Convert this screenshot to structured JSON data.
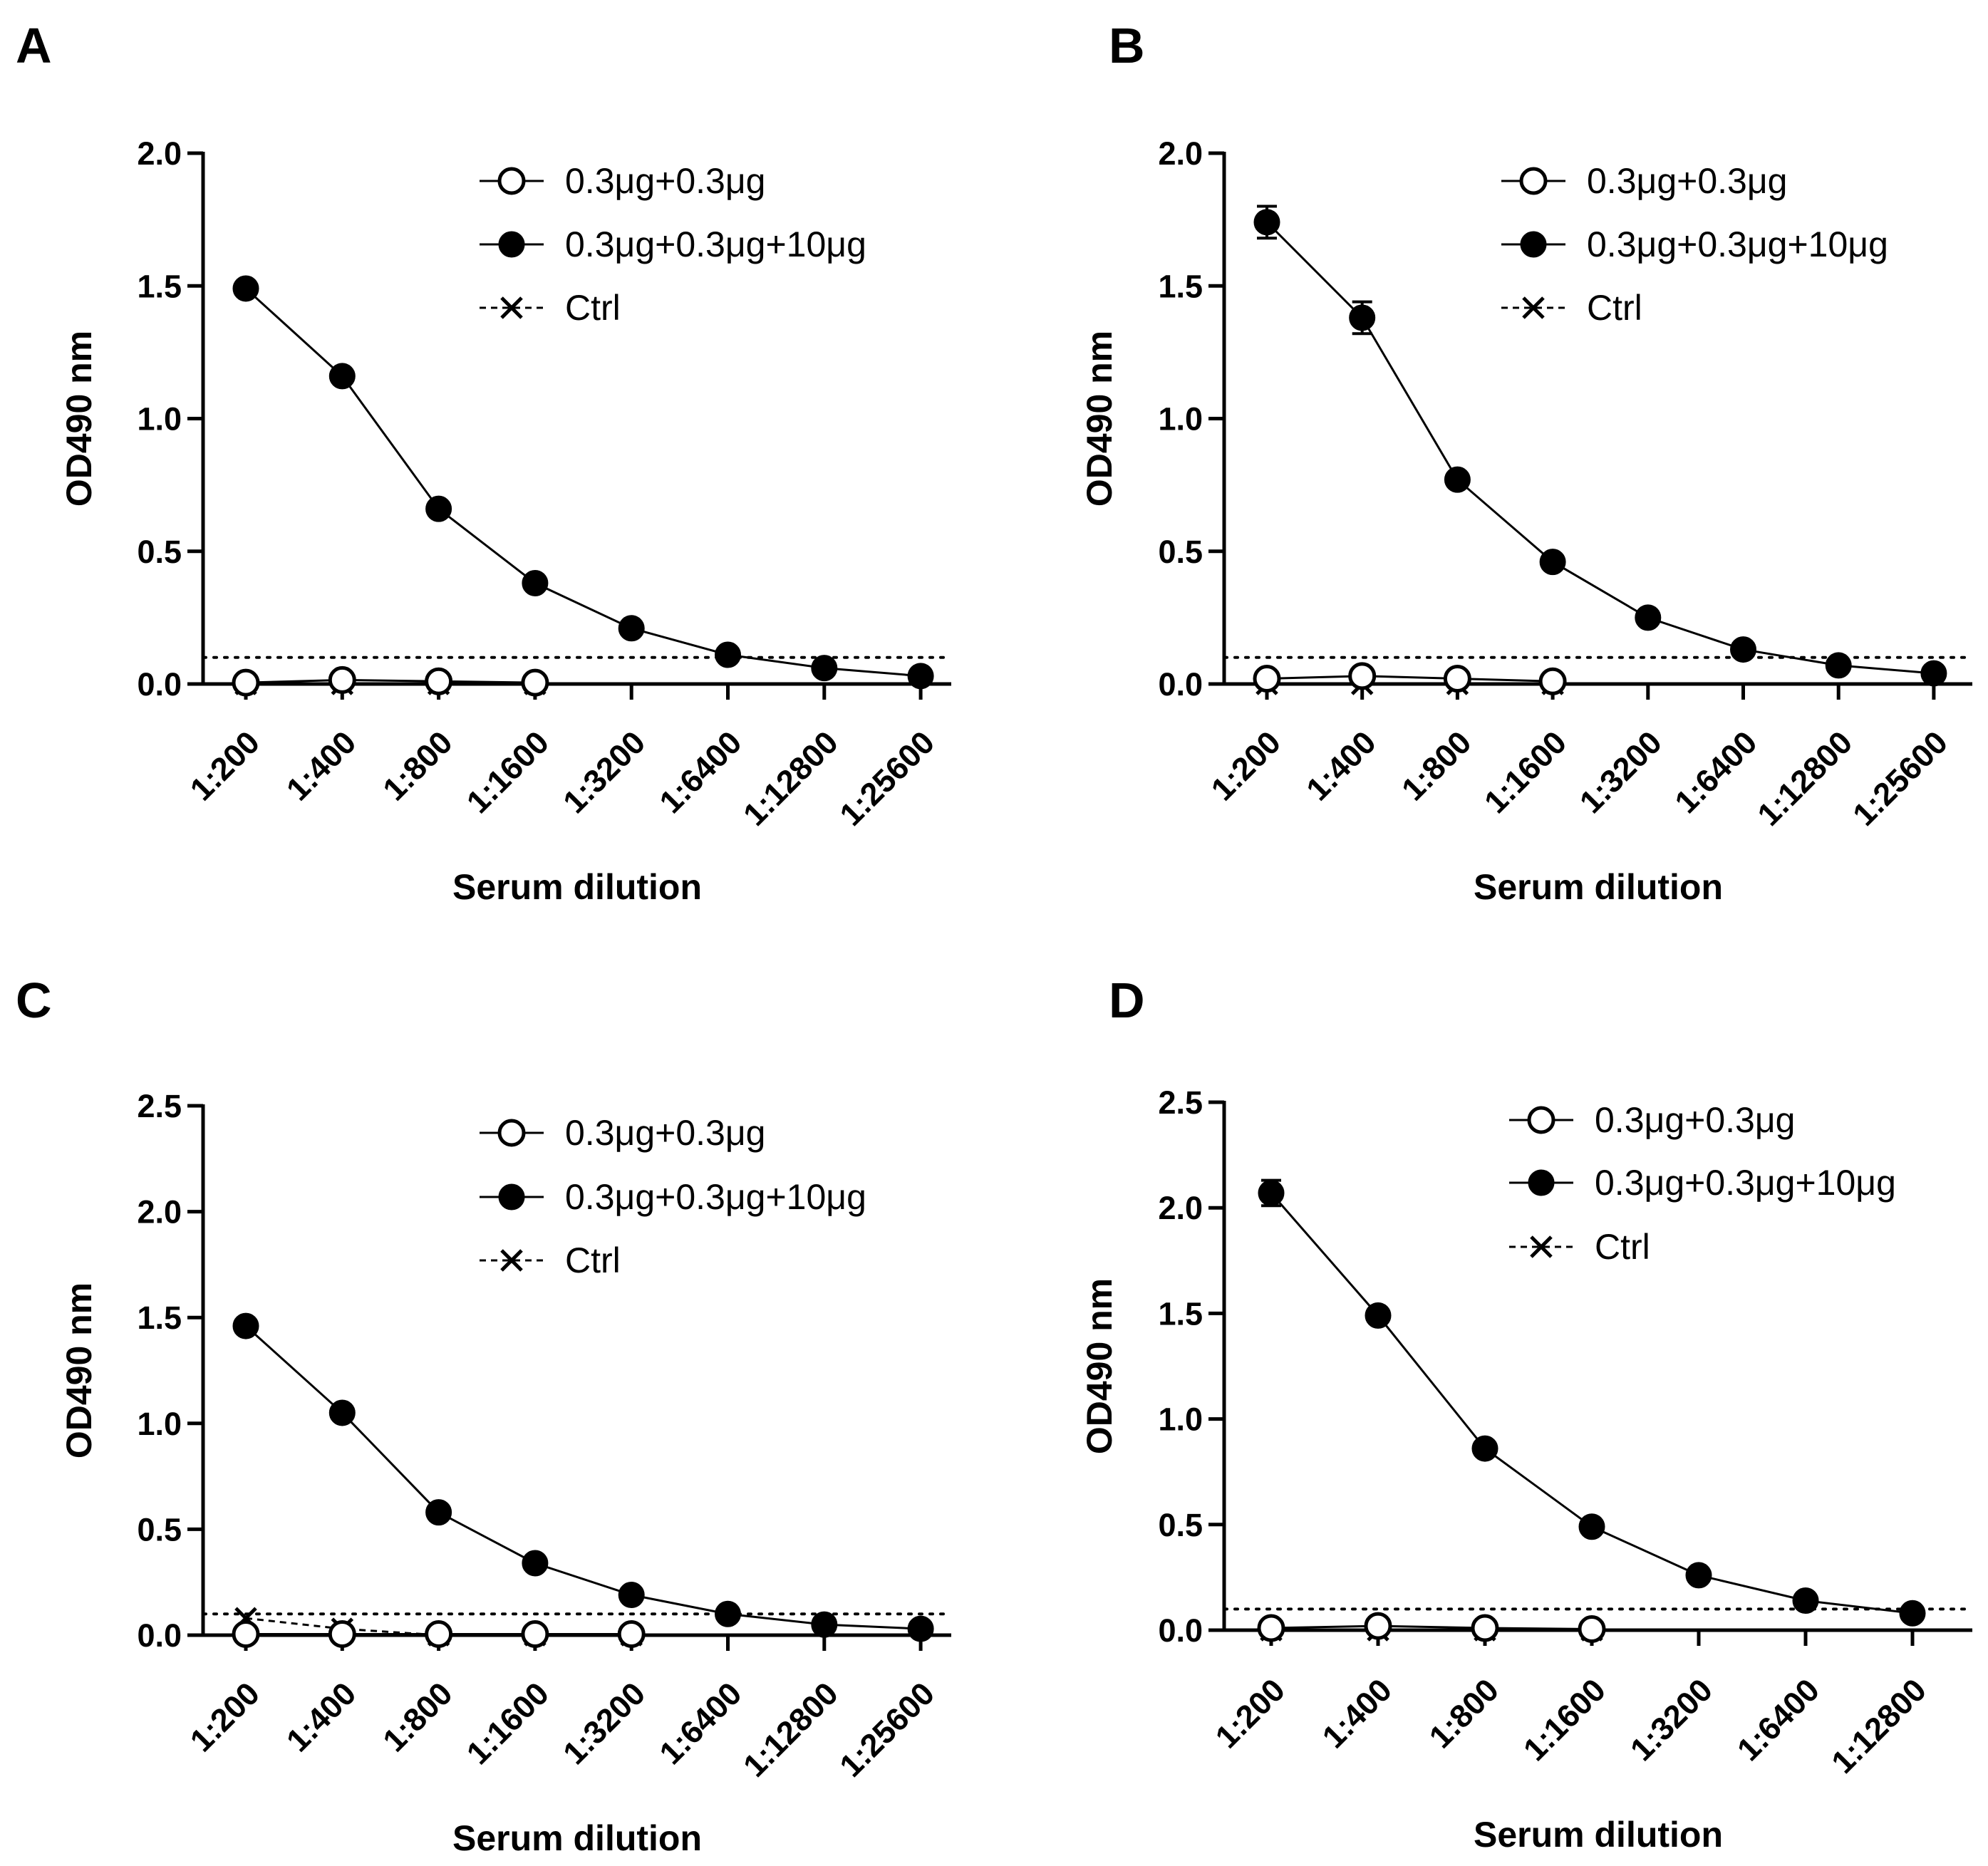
{
  "figure": {
    "background": "#ffffff",
    "ink": "#000000"
  },
  "legend": {
    "entries": [
      {
        "name": "0.3μg+0.3μg",
        "marker": "open-circle",
        "line": "solid"
      },
      {
        "name": "0.3μg+0.3μg+10μg",
        "marker": "filled-circle",
        "line": "solid"
      },
      {
        "name": "Ctrl",
        "marker": "cross",
        "line": "dashed"
      }
    ]
  },
  "chart_data": [
    {
      "panel": "A",
      "type": "line",
      "ylabel": "OD490 nm",
      "xlabel": "Serum  dilution",
      "ylim": [
        0,
        2.0
      ],
      "yticks": [
        0.0,
        0.5,
        1.0,
        1.5,
        2.0
      ],
      "ytick_labels": [
        "0.0",
        "0.5",
        "1.0",
        "1.5",
        "2.0"
      ],
      "categories": [
        "1:200",
        "1:400",
        "1:800",
        "1:1600",
        "1:3200",
        "1:6400",
        "1:12800",
        "1:25600"
      ],
      "cutoff": 0.1,
      "legend_position": "top-right",
      "series": [
        {
          "name": "0.3μg+0.3μg",
          "values": [
            0.005,
            0.015,
            0.01,
            0.005,
            null,
            null,
            null,
            null
          ]
        },
        {
          "name": "0.3μg+0.3μg+10μg",
          "values": [
            1.49,
            1.16,
            0.66,
            0.38,
            0.21,
            0.11,
            0.06,
            0.03
          ],
          "errors": [
            0,
            0,
            0,
            0,
            0,
            0,
            0,
            0
          ]
        },
        {
          "name": "Ctrl",
          "values": [
            0.0,
            0.0,
            0.0,
            0.0,
            null,
            null,
            null,
            null
          ]
        }
      ]
    },
    {
      "panel": "B",
      "type": "line",
      "ylabel": "OD490 nm",
      "xlabel": "Serum  dilution",
      "ylim": [
        0,
        2.0
      ],
      "yticks": [
        0.0,
        0.5,
        1.0,
        1.5,
        2.0
      ],
      "ytick_labels": [
        "0.0",
        "0.5",
        "1.0",
        "1.5",
        "2.0"
      ],
      "categories": [
        "1:200",
        "1:400",
        "1:800",
        "1:1600",
        "1:3200",
        "1:6400",
        "1:12800",
        "1:25600"
      ],
      "cutoff": 0.1,
      "legend_position": "top-right",
      "series": [
        {
          "name": "0.3μg+0.3μg",
          "values": [
            0.02,
            0.03,
            0.02,
            0.01,
            null,
            null,
            null,
            null
          ]
        },
        {
          "name": "0.3μg+0.3μg+10μg",
          "values": [
            1.74,
            1.38,
            0.77,
            0.46,
            0.25,
            0.13,
            0.07,
            0.04
          ],
          "errors": [
            0.06,
            0.06,
            0,
            0,
            0,
            0,
            0,
            0
          ]
        },
        {
          "name": "Ctrl",
          "values": [
            0.0,
            0.0,
            0.0,
            0.0,
            null,
            null,
            null,
            null
          ]
        }
      ]
    },
    {
      "panel": "C",
      "type": "line",
      "ylabel": "OD490 nm",
      "xlabel": "Serum dilution",
      "ylim": [
        0,
        2.5
      ],
      "yticks": [
        0.0,
        0.5,
        1.0,
        1.5,
        2.0,
        2.5
      ],
      "ytick_labels": [
        "0.0",
        "0.5",
        "1.0",
        "1.5",
        "2.0",
        "2.5"
      ],
      "categories": [
        "1:200",
        "1:400",
        "1:800",
        "1:1600",
        "1:3200",
        "1:6400",
        "1:12800",
        "1:25600"
      ],
      "cutoff": 0.1,
      "legend_position": "top-right",
      "series": [
        {
          "name": "0.3μg+0.3μg",
          "values": [
            0.005,
            0.005,
            0.005,
            0.005,
            0.005,
            null,
            null,
            null
          ]
        },
        {
          "name": "0.3μg+0.3μg+10μg",
          "values": [
            1.46,
            1.05,
            0.58,
            0.34,
            0.19,
            0.1,
            0.05,
            0.03
          ],
          "errors": [
            0,
            0,
            0,
            0,
            0,
            0,
            0,
            0
          ]
        },
        {
          "name": "Ctrl",
          "values": [
            0.08,
            0.03,
            0.0,
            0.0,
            0.0,
            null,
            null,
            null
          ]
        }
      ]
    },
    {
      "panel": "D",
      "type": "line",
      "ylabel": "OD490 nm",
      "xlabel": "Serum dilution",
      "ylim": [
        0,
        2.5
      ],
      "yticks": [
        0.0,
        0.5,
        1.0,
        1.5,
        2.0,
        2.5
      ],
      "ytick_labels": [
        "0.0",
        "0.5",
        "1.0",
        "1.5",
        "2.0",
        "2.5"
      ],
      "categories": [
        "1:200",
        "1:400",
        "1:800",
        "1:1600",
        "1:3200",
        "1:6400",
        "1:12800"
      ],
      "cutoff": 0.1,
      "legend_position": "top-right",
      "series": [
        {
          "name": "0.3μg+0.3μg",
          "values": [
            0.01,
            0.02,
            0.01,
            0.005,
            null,
            null,
            null
          ]
        },
        {
          "name": "0.3μg+0.3μg+10μg",
          "values": [
            2.07,
            1.49,
            0.86,
            0.49,
            0.26,
            0.14,
            0.08
          ],
          "errors": [
            0.06,
            0,
            0,
            0,
            0,
            0,
            0
          ]
        },
        {
          "name": "Ctrl",
          "values": [
            0.0,
            0.0,
            0.0,
            0.0,
            null,
            null,
            null
          ]
        }
      ]
    }
  ]
}
